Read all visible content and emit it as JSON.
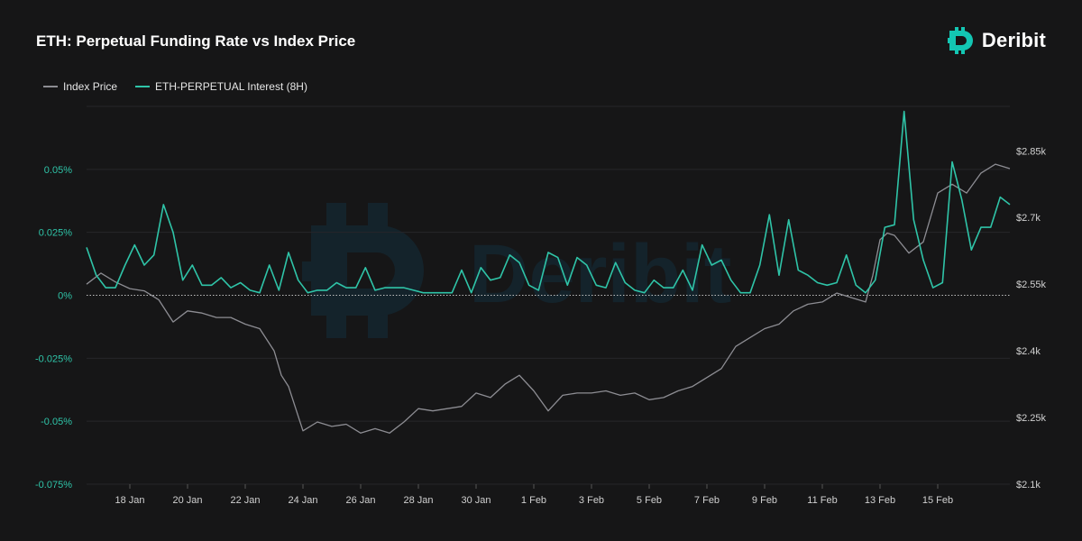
{
  "title": "ETH: Perpetual Funding Rate vs Index Price",
  "brand": {
    "name": "Deribit",
    "icon": "deribit-logo-icon",
    "color": "#13c6b3"
  },
  "watermark": "Deribit",
  "colors": {
    "background": "#161617",
    "funding": "#2fc4a8",
    "price": "#8d8d93",
    "grid": "#26262a",
    "zero_line": "#bdbdbd",
    "left_axis": "#2fc4a8",
    "right_axis": "#d0d0d0"
  },
  "chart_data": {
    "type": "line",
    "title": "ETH: Perpetual Funding Rate vs Index Price",
    "x_ticks": [
      "18 Jan",
      "20 Jan",
      "22 Jan",
      "24 Jan",
      "26 Jan",
      "28 Jan",
      "30 Jan",
      "1 Feb",
      "3 Feb",
      "5 Feb",
      "7 Feb",
      "9 Feb",
      "11 Feb",
      "13 Feb",
      "15 Feb"
    ],
    "x_range": [
      "2025-01-16T12:00",
      "2025-02-17T12:00"
    ],
    "y_left": {
      "label": "",
      "ticks": [
        "0.05%",
        "0.025%",
        "0%",
        "-0.025%",
        "-0.05%",
        "-0.075%"
      ],
      "ylim": [
        -0.075,
        0.075
      ],
      "unit": "%"
    },
    "y_right": {
      "label": "",
      "ticks": [
        "$2.85k",
        "$2.7k",
        "$2.55k",
        "$2.4k",
        "$2.25k",
        "$2.1k"
      ],
      "ylim": [
        2100,
        2950
      ],
      "unit": "USD"
    },
    "grid": true,
    "legend_position": "top-left",
    "series": [
      {
        "name": "Index Price",
        "axis": "right",
        "color": "#8d8d93",
        "x": [
          "2025-01-16T12:00",
          "2025-01-17T00:00",
          "2025-01-17T12:00",
          "2025-01-18T00:00",
          "2025-01-18T12:00",
          "2025-01-19T00:00",
          "2025-01-19T12:00",
          "2025-01-20T00:00",
          "2025-01-20T12:00",
          "2025-01-21T00:00",
          "2025-01-21T12:00",
          "2025-01-22T00:00",
          "2025-01-22T12:00",
          "2025-01-23T00:00",
          "2025-01-23T06:00",
          "2025-01-23T12:00",
          "2025-01-24T00:00",
          "2025-01-24T12:00",
          "2025-01-25T00:00",
          "2025-01-25T12:00",
          "2025-01-26T00:00",
          "2025-01-26T12:00",
          "2025-01-27T00:00",
          "2025-01-27T12:00",
          "2025-01-28T00:00",
          "2025-01-28T12:00",
          "2025-01-29T00:00",
          "2025-01-29T12:00",
          "2025-01-30T00:00",
          "2025-01-30T12:00",
          "2025-01-31T00:00",
          "2025-01-31T12:00",
          "2025-02-01T00:00",
          "2025-02-01T12:00",
          "2025-02-02T00:00",
          "2025-02-02T12:00",
          "2025-02-03T00:00",
          "2025-02-03T12:00",
          "2025-02-04T00:00",
          "2025-02-04T12:00",
          "2025-02-05T00:00",
          "2025-02-05T12:00",
          "2025-02-06T00:00",
          "2025-02-06T12:00",
          "2025-02-07T00:00",
          "2025-02-07T12:00",
          "2025-02-08T00:00",
          "2025-02-08T12:00",
          "2025-02-09T00:00",
          "2025-02-09T12:00",
          "2025-02-10T00:00",
          "2025-02-10T12:00",
          "2025-02-11T00:00",
          "2025-02-11T12:00",
          "2025-02-12T00:00",
          "2025-02-12T12:00",
          "2025-02-12T18:00",
          "2025-02-13T00:00",
          "2025-02-13T06:00",
          "2025-02-13T12:00",
          "2025-02-14T00:00",
          "2025-02-14T12:00",
          "2025-02-15T00:00",
          "2025-02-15T12:00",
          "2025-02-16T00:00",
          "2025-02-16T12:00",
          "2025-02-17T00:00",
          "2025-02-17T12:00"
        ],
        "values": [
          2550,
          2575,
          2555,
          2540,
          2535,
          2515,
          2465,
          2490,
          2485,
          2475,
          2475,
          2460,
          2450,
          2400,
          2345,
          2320,
          2220,
          2240,
          2230,
          2235,
          2215,
          2225,
          2215,
          2240,
          2270,
          2265,
          2270,
          2275,
          2305,
          2295,
          2325,
          2345,
          2310,
          2265,
          2300,
          2305,
          2305,
          2310,
          2300,
          2305,
          2290,
          2295,
          2310,
          2320,
          2340,
          2360,
          2410,
          2430,
          2450,
          2460,
          2490,
          2505,
          2510,
          2530,
          2520,
          2510,
          2570,
          2650,
          2665,
          2660,
          2620,
          2645,
          2755,
          2775,
          2755,
          2800,
          2820,
          2810
        ]
      },
      {
        "name": "ETH-PERPETUAL Interest (8H)",
        "axis": "left",
        "color": "#2fc4a8",
        "x": [
          "2025-01-16T12:00",
          "2025-01-16T20:00",
          "2025-01-17T04:00",
          "2025-01-17T12:00",
          "2025-01-17T20:00",
          "2025-01-18T04:00",
          "2025-01-18T12:00",
          "2025-01-18T20:00",
          "2025-01-19T04:00",
          "2025-01-19T12:00",
          "2025-01-19T20:00",
          "2025-01-20T04:00",
          "2025-01-20T12:00",
          "2025-01-20T20:00",
          "2025-01-21T04:00",
          "2025-01-21T12:00",
          "2025-01-21T20:00",
          "2025-01-22T04:00",
          "2025-01-22T12:00",
          "2025-01-22T20:00",
          "2025-01-23T04:00",
          "2025-01-23T12:00",
          "2025-01-23T20:00",
          "2025-01-24T04:00",
          "2025-01-24T12:00",
          "2025-01-24T20:00",
          "2025-01-25T04:00",
          "2025-01-25T12:00",
          "2025-01-25T20:00",
          "2025-01-26T04:00",
          "2025-01-26T12:00",
          "2025-01-26T20:00",
          "2025-01-27T04:00",
          "2025-01-27T12:00",
          "2025-01-27T20:00",
          "2025-01-28T04:00",
          "2025-01-28T12:00",
          "2025-01-28T20:00",
          "2025-01-29T04:00",
          "2025-01-29T12:00",
          "2025-01-29T20:00",
          "2025-01-30T04:00",
          "2025-01-30T12:00",
          "2025-01-30T20:00",
          "2025-01-31T04:00",
          "2025-01-31T12:00",
          "2025-01-31T20:00",
          "2025-02-01T04:00",
          "2025-02-01T12:00",
          "2025-02-01T20:00",
          "2025-02-02T04:00",
          "2025-02-02T12:00",
          "2025-02-02T20:00",
          "2025-02-03T04:00",
          "2025-02-03T12:00",
          "2025-02-03T20:00",
          "2025-02-04T04:00",
          "2025-02-04T12:00",
          "2025-02-04T20:00",
          "2025-02-05T04:00",
          "2025-02-05T12:00",
          "2025-02-05T20:00",
          "2025-02-06T04:00",
          "2025-02-06T12:00",
          "2025-02-06T20:00",
          "2025-02-07T04:00",
          "2025-02-07T12:00",
          "2025-02-07T20:00",
          "2025-02-08T04:00",
          "2025-02-08T12:00",
          "2025-02-08T20:00",
          "2025-02-09T04:00",
          "2025-02-09T12:00",
          "2025-02-09T20:00",
          "2025-02-10T04:00",
          "2025-02-10T12:00",
          "2025-02-10T20:00",
          "2025-02-11T04:00",
          "2025-02-11T12:00",
          "2025-02-11T20:00",
          "2025-02-12T04:00",
          "2025-02-12T12:00",
          "2025-02-12T20:00",
          "2025-02-13T04:00",
          "2025-02-13T12:00",
          "2025-02-13T20:00",
          "2025-02-14T04:00",
          "2025-02-14T12:00",
          "2025-02-14T20:00",
          "2025-02-15T04:00",
          "2025-02-15T12:00",
          "2025-02-15T20:00",
          "2025-02-16T04:00",
          "2025-02-16T12:00",
          "2025-02-16T20:00",
          "2025-02-17T04:00",
          "2025-02-17T12:00"
        ],
        "values": [
          0.019,
          0.008,
          0.003,
          0.003,
          0.012,
          0.02,
          0.012,
          0.016,
          0.036,
          0.025,
          0.006,
          0.012,
          0.004,
          0.004,
          0.007,
          0.003,
          0.005,
          0.002,
          0.001,
          0.012,
          0.002,
          0.017,
          0.006,
          0.001,
          0.002,
          0.002,
          0.005,
          0.003,
          0.003,
          0.011,
          0.002,
          0.003,
          0.003,
          0.003,
          0.002,
          0.001,
          0.001,
          0.001,
          0.001,
          0.01,
          0.001,
          0.011,
          0.006,
          0.007,
          0.016,
          0.013,
          0.004,
          0.002,
          0.017,
          0.015,
          0.004,
          0.015,
          0.012,
          0.004,
          0.003,
          0.013,
          0.005,
          0.002,
          0.001,
          0.006,
          0.003,
          0.003,
          0.01,
          0.002,
          0.02,
          0.012,
          0.014,
          0.006,
          0.001,
          0.001,
          0.012,
          0.032,
          0.008,
          0.03,
          0.01,
          0.008,
          0.005,
          0.004,
          0.005,
          0.016,
          0.004,
          0.001,
          0.006,
          0.027,
          0.028,
          0.073,
          0.03,
          0.014,
          0.003,
          0.005,
          0.053,
          0.038,
          0.018,
          0.027,
          0.027,
          0.039,
          0.036
        ]
      }
    ]
  }
}
